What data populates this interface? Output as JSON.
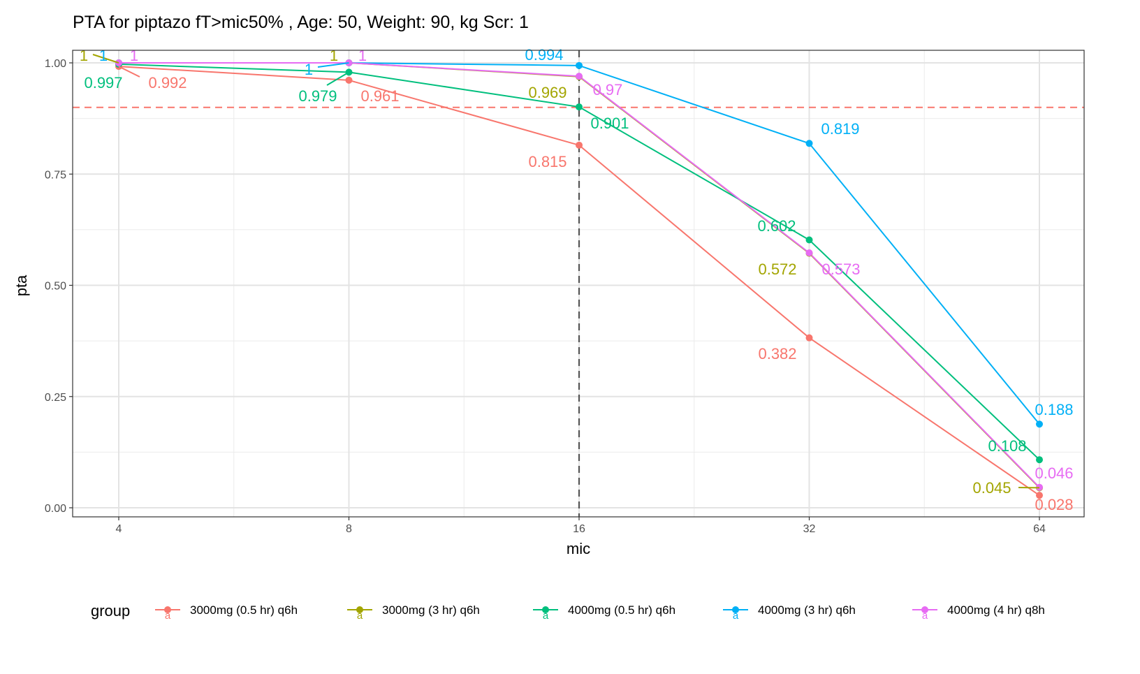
{
  "chart_data": {
    "type": "line",
    "title": "PTA for piptazo fT>mic50% , Age: 50, Weight: 90, kg Scr: 1",
    "xlabel": "mic",
    "ylabel": "pta",
    "x_scale": "log2",
    "x": [
      4,
      8,
      16,
      32,
      64
    ],
    "x_tick_labels": [
      "4",
      "8",
      "16",
      "32",
      "64"
    ],
    "ylim": [
      0,
      1
    ],
    "y_ticks": [
      0,
      0.25,
      0.5,
      0.75,
      1
    ],
    "y_tick_labels": [
      "0.00",
      "0.25",
      "0.50",
      "0.75",
      "1.00"
    ],
    "grid": true,
    "reference_lines": {
      "horizontal_pta": 0.9,
      "vertical_mic": 16
    },
    "legend": {
      "title": "group",
      "placement": "bottom",
      "key_glyph": "a"
    },
    "series": [
      {
        "name": "3000mg (0.5 hr) q6h",
        "color": "#F8766D",
        "values": [
          0.992,
          0.961,
          0.815,
          0.382,
          0.028
        ],
        "labels": [
          "0.992",
          "0.961",
          "0.815",
          "0.382",
          "0.028"
        ]
      },
      {
        "name": "3000mg (3 hr) q6h",
        "color": "#A3A500",
        "values": [
          1,
          1,
          0.969,
          0.572,
          0.045
        ],
        "labels": [
          "1",
          "1",
          "0.969",
          "0.572",
          "0.045"
        ]
      },
      {
        "name": "4000mg (0.5 hr) q6h",
        "color": "#00BF7D",
        "values": [
          0.997,
          0.979,
          0.901,
          0.602,
          0.108
        ],
        "labels": [
          "0.997",
          "0.979",
          "0.901",
          "0.602",
          "0.108"
        ]
      },
      {
        "name": "4000mg (3 hr) q6h",
        "color": "#00B0F6",
        "values": [
          1,
          1,
          0.994,
          0.819,
          0.188
        ],
        "labels": [
          "1",
          "1",
          "0.994",
          "0.819",
          "0.188"
        ]
      },
      {
        "name": "4000mg (4 hr) q8h",
        "color": "#E76BF3",
        "values": [
          1,
          1,
          0.97,
          0.573,
          0.046
        ],
        "labels": [
          "1",
          "1",
          "0.97",
          "0.573",
          "0.046"
        ]
      }
    ]
  }
}
